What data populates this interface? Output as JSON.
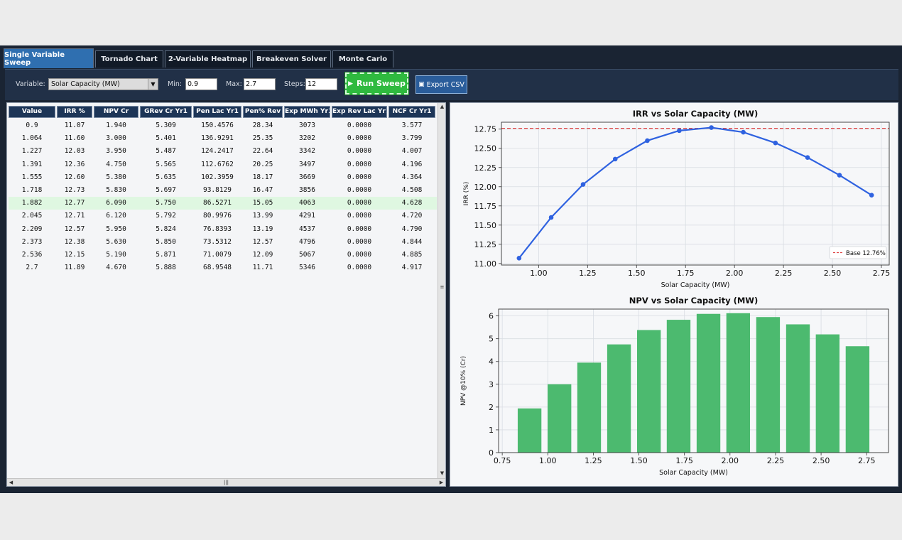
{
  "tabs": [
    {
      "label": "Single Variable Sweep",
      "active": true
    },
    {
      "label": "Tornado Chart",
      "active": false
    },
    {
      "label": "2-Variable Heatmap",
      "active": false
    },
    {
      "label": "Breakeven Solver",
      "active": false
    },
    {
      "label": "Monte Carlo",
      "active": false
    }
  ],
  "toolbar": {
    "variable_label": "Variable:",
    "variable_value": "Solar Capacity (MW)",
    "min_label": "Min:",
    "min_value": "0.9",
    "max_label": "Max:",
    "max_value": "2.7",
    "steps_label": "Steps:",
    "steps_value": "12",
    "run_label": "Run Sweep",
    "export_label": "Export CSV"
  },
  "table": {
    "columns": [
      "Value",
      "IRR %",
      "NPV Cr",
      "GRev Cr Yr1",
      "Pen Lac Yr1",
      "Pen% Rev",
      "Exp MWh Yr1",
      "Exp Rev Lac Yr1",
      "NCF Cr Yr1"
    ],
    "highlighted_row": 6,
    "rows": [
      [
        "0.9",
        "11.07",
        "1.940",
        "5.309",
        "150.4576",
        "28.34",
        "3073",
        "0.0000",
        "3.577"
      ],
      [
        "1.064",
        "11.60",
        "3.000",
        "5.401",
        "136.9291",
        "25.35",
        "3202",
        "0.0000",
        "3.799"
      ],
      [
        "1.227",
        "12.03",
        "3.950",
        "5.487",
        "124.2417",
        "22.64",
        "3342",
        "0.0000",
        "4.007"
      ],
      [
        "1.391",
        "12.36",
        "4.750",
        "5.565",
        "112.6762",
        "20.25",
        "3497",
        "0.0000",
        "4.196"
      ],
      [
        "1.555",
        "12.60",
        "5.380",
        "5.635",
        "102.3959",
        "18.17",
        "3669",
        "0.0000",
        "4.364"
      ],
      [
        "1.718",
        "12.73",
        "5.830",
        "5.697",
        "93.8129",
        "16.47",
        "3856",
        "0.0000",
        "4.508"
      ],
      [
        "1.882",
        "12.77",
        "6.090",
        "5.750",
        "86.5271",
        "15.05",
        "4063",
        "0.0000",
        "4.628"
      ],
      [
        "2.045",
        "12.71",
        "6.120",
        "5.792",
        "80.9976",
        "13.99",
        "4291",
        "0.0000",
        "4.720"
      ],
      [
        "2.209",
        "12.57",
        "5.950",
        "5.824",
        "76.8393",
        "13.19",
        "4537",
        "0.0000",
        "4.790"
      ],
      [
        "2.373",
        "12.38",
        "5.630",
        "5.850",
        "73.5312",
        "12.57",
        "4796",
        "0.0000",
        "4.844"
      ],
      [
        "2.536",
        "12.15",
        "5.190",
        "5.871",
        "71.0079",
        "12.09",
        "5067",
        "0.0000",
        "4.885"
      ],
      [
        "2.7",
        "11.89",
        "4.670",
        "5.888",
        "68.9548",
        "11.71",
        "5346",
        "0.0000",
        "4.917"
      ]
    ]
  },
  "chart_data": [
    {
      "type": "line",
      "title": "IRR vs Solar Capacity (MW)",
      "xlabel": "Solar Capacity (MW)",
      "ylabel": "IRR (%)",
      "x": [
        0.9,
        1.064,
        1.227,
        1.391,
        1.555,
        1.718,
        1.882,
        2.045,
        2.209,
        2.373,
        2.536,
        2.7
      ],
      "y": [
        11.07,
        11.6,
        12.03,
        12.36,
        12.6,
        12.73,
        12.77,
        12.71,
        12.57,
        12.38,
        12.15,
        11.89
      ],
      "xlim": [
        0.81,
        2.79
      ],
      "ylim": [
        10.98,
        12.84
      ],
      "xticks": [
        1.0,
        1.25,
        1.5,
        1.75,
        2.0,
        2.25,
        2.5,
        2.75
      ],
      "xticklabels": [
        "1.00",
        "1.25",
        "1.50",
        "1.75",
        "2.00",
        "2.25",
        "2.50",
        "2.75"
      ],
      "yticks": [
        11.0,
        11.25,
        11.5,
        11.75,
        12.0,
        12.25,
        12.5,
        12.75
      ],
      "yticklabels": [
        "11.00",
        "11.25",
        "11.50",
        "11.75",
        "12.00",
        "12.25",
        "12.50",
        "12.75"
      ],
      "reference_line": {
        "value": 12.76,
        "label": "Base 12.76%"
      },
      "legend": "lower-right",
      "grid": true,
      "line_color": "#2f62e0",
      "ref_color": "#e04848"
    },
    {
      "type": "bar",
      "title": "NPV vs Solar Capacity (MW)",
      "xlabel": "Solar Capacity (MW)",
      "ylabel": "NPV @10% (Cr)",
      "x": [
        0.9,
        1.064,
        1.227,
        1.391,
        1.555,
        1.718,
        1.882,
        2.045,
        2.209,
        2.373,
        2.536,
        2.7
      ],
      "values": [
        1.94,
        3.0,
        3.95,
        4.75,
        5.38,
        5.83,
        6.09,
        6.12,
        5.95,
        5.63,
        5.19,
        4.67
      ],
      "bar_width": 0.13,
      "xlim": [
        0.73,
        2.87
      ],
      "ylim": [
        0,
        6.3
      ],
      "xticks": [
        0.75,
        1.0,
        1.25,
        1.5,
        1.75,
        2.0,
        2.25,
        2.5,
        2.75
      ],
      "xticklabels": [
        "0.75",
        "1.00",
        "1.25",
        "1.50",
        "1.75",
        "2.00",
        "2.25",
        "2.50",
        "2.75"
      ],
      "yticks": [
        0,
        1,
        2,
        3,
        4,
        5,
        6
      ],
      "yticklabels": [
        "0",
        "1",
        "2",
        "3",
        "4",
        "5",
        "6"
      ],
      "grid": true,
      "bar_color": "#4cba6f"
    }
  ]
}
